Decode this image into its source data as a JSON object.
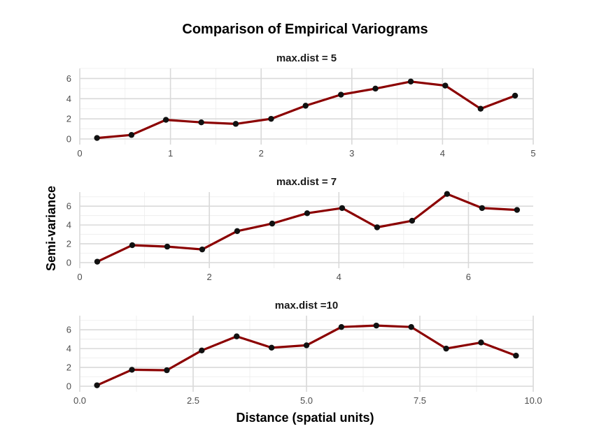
{
  "chart_data": {
    "type": "line",
    "title": "Comparison of Empirical Variograms",
    "xlabel": "Distance (spatial units)",
    "ylabel": "Semi-variance",
    "colors": {
      "line": "#8b0000",
      "point": "#111111"
    },
    "grid": true,
    "panels": [
      {
        "title": "max.dist = 5",
        "xlim": [
          0,
          5
        ],
        "ylim": [
          0,
          7
        ],
        "xticks": [
          0,
          1,
          2,
          3,
          4,
          5
        ],
        "xtick_labels": [
          "0",
          "1",
          "2",
          "3",
          "4",
          "5"
        ],
        "yticks": [
          0,
          2,
          4,
          6
        ],
        "ytick_labels": [
          "0",
          "2",
          "4",
          "6"
        ],
        "x": [
          0.19,
          0.57,
          0.95,
          1.34,
          1.72,
          2.11,
          2.49,
          2.88,
          3.26,
          3.65,
          4.03,
          4.42,
          4.8
        ],
        "y": [
          0.1,
          0.4,
          1.9,
          1.65,
          1.5,
          2.0,
          3.3,
          4.4,
          5.0,
          5.7,
          5.3,
          3.0,
          4.3
        ]
      },
      {
        "title": "max.dist = 7",
        "xlim": [
          0,
          7
        ],
        "ylim": [
          0,
          7.5
        ],
        "xticks": [
          0,
          2,
          4,
          6
        ],
        "xtick_labels": [
          "0",
          "2",
          "4",
          "6"
        ],
        "yticks": [
          0,
          2,
          4,
          6
        ],
        "ytick_labels": [
          "0",
          "2",
          "4",
          "6"
        ],
        "x": [
          0.27,
          0.81,
          1.35,
          1.89,
          2.43,
          2.97,
          3.51,
          4.05,
          4.59,
          5.13,
          5.67,
          6.21,
          6.75
        ],
        "y": [
          0.1,
          1.85,
          1.7,
          1.4,
          3.35,
          4.15,
          5.25,
          5.8,
          3.75,
          4.45,
          7.3,
          5.8,
          5.6
        ]
      },
      {
        "title": "max.dist =10",
        "xlim": [
          0,
          10
        ],
        "ylim": [
          0,
          7.5
        ],
        "xticks": [
          0,
          2.5,
          5,
          7.5,
          10
        ],
        "xtick_labels": [
          "0.0",
          "2.5",
          "5.0",
          "7.5",
          "10.0"
        ],
        "yticks": [
          0,
          2,
          4,
          6
        ],
        "ytick_labels": [
          "0",
          "2",
          "4",
          "6"
        ],
        "x": [
          0.38,
          1.15,
          1.92,
          2.69,
          3.46,
          4.23,
          5.0,
          5.77,
          6.54,
          7.31,
          8.08,
          8.85,
          9.62
        ],
        "y": [
          0.1,
          1.75,
          1.7,
          3.8,
          5.3,
          4.1,
          4.35,
          6.3,
          6.45,
          6.3,
          4.0,
          4.65,
          3.25
        ]
      }
    ]
  }
}
